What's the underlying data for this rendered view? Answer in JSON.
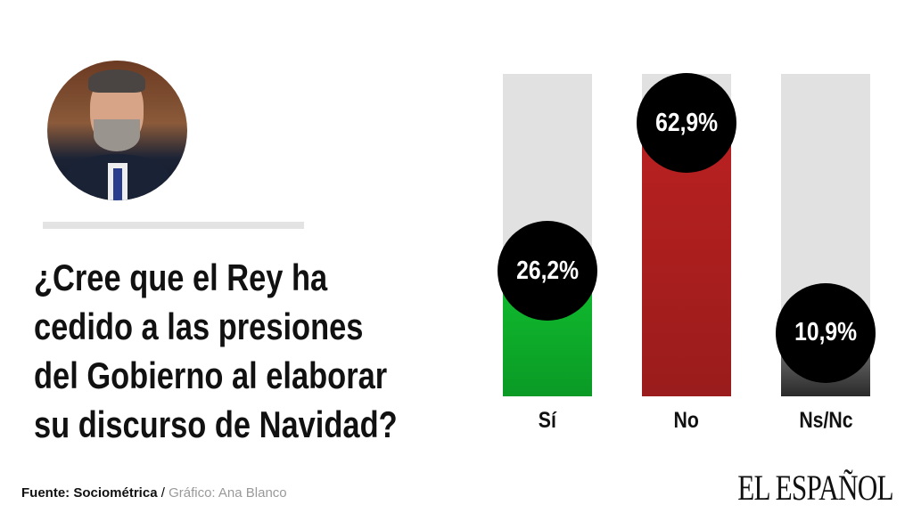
{
  "question": [
    "¿Cree que el Rey ha",
    "cedido a las presiones",
    "del Gobierno al elaborar",
    "su discurso de Navidad?"
  ],
  "chart_data": {
    "type": "bar",
    "title": "¿Cree que el Rey ha cedido a las presiones del Gobierno al elaborar su discurso de Navidad?",
    "categories": [
      "Sí",
      "No",
      "Ns/Nc"
    ],
    "values": [
      26.2,
      62.9,
      10.9
    ],
    "labels": [
      "26,2%",
      "62,9%",
      "10,9%"
    ],
    "colors": [
      "#10b82e",
      "#b82020",
      "#3a3a3a"
    ],
    "ylim": [
      0,
      80
    ],
    "unit": "%"
  },
  "footer": {
    "source_label": "Fuente: Sociométrica",
    "separator": " / ",
    "credit": "Gráfico: Ana Blanco",
    "logo": "EL ESPAÑOL"
  }
}
